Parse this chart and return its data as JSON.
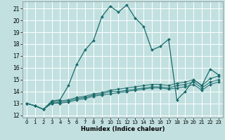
{
  "xlabel": "Humidex (Indice chaleur)",
  "bg_color": "#c2e0e0",
  "grid_color": "#ffffff",
  "line_color": "#1a6b6b",
  "xlim": [
    -0.5,
    23.5
  ],
  "ylim": [
    11.8,
    21.6
  ],
  "yticks": [
    12,
    13,
    14,
    15,
    16,
    17,
    18,
    19,
    20,
    21
  ],
  "xticks": [
    0,
    1,
    2,
    3,
    4,
    5,
    6,
    7,
    8,
    9,
    10,
    11,
    12,
    13,
    14,
    15,
    16,
    17,
    18,
    19,
    20,
    21,
    22,
    23
  ],
  "main_line": {
    "x": [
      0,
      1,
      2,
      3,
      4,
      5,
      6,
      7,
      8,
      9,
      10,
      11,
      12,
      13,
      14,
      15,
      16,
      17,
      18,
      19,
      20,
      21,
      22,
      23
    ],
    "y": [
      13.0,
      12.8,
      12.5,
      13.2,
      13.3,
      14.5,
      16.3,
      17.5,
      18.3,
      20.3,
      21.2,
      20.7,
      21.3,
      20.2,
      19.5,
      17.5,
      17.8,
      18.4,
      13.3,
      14.0,
      15.0,
      14.5,
      15.9,
      15.4
    ]
  },
  "line2": {
    "x": [
      0,
      1,
      2,
      3,
      4,
      5,
      6,
      7,
      8,
      9,
      10,
      11,
      12,
      13,
      14,
      15,
      16,
      17,
      18,
      19,
      20,
      21,
      22,
      23
    ],
    "y": [
      13.0,
      12.8,
      12.5,
      13.1,
      13.2,
      13.3,
      13.5,
      13.6,
      13.8,
      13.9,
      14.1,
      14.2,
      14.3,
      14.4,
      14.5,
      14.6,
      14.6,
      14.5,
      14.7,
      14.8,
      15.0,
      14.5,
      15.1,
      15.3
    ]
  },
  "line3": {
    "x": [
      0,
      1,
      2,
      3,
      4,
      5,
      6,
      7,
      8,
      9,
      10,
      11,
      12,
      13,
      14,
      15,
      16,
      17,
      18,
      19,
      20,
      21,
      22,
      23
    ],
    "y": [
      13.0,
      12.8,
      12.5,
      13.0,
      13.1,
      13.2,
      13.4,
      13.5,
      13.7,
      13.8,
      14.0,
      14.0,
      14.1,
      14.2,
      14.3,
      14.4,
      14.4,
      14.3,
      14.5,
      14.6,
      14.8,
      14.3,
      14.8,
      15.0
    ]
  },
  "line4": {
    "x": [
      0,
      1,
      2,
      3,
      4,
      5,
      6,
      7,
      8,
      9,
      10,
      11,
      12,
      13,
      14,
      15,
      16,
      17,
      18,
      19,
      20,
      21,
      22,
      23
    ],
    "y": [
      13.0,
      12.8,
      12.5,
      13.0,
      13.0,
      13.1,
      13.3,
      13.4,
      13.6,
      13.7,
      13.8,
      13.9,
      14.0,
      14.1,
      14.2,
      14.3,
      14.3,
      14.2,
      14.3,
      14.4,
      14.6,
      14.1,
      14.6,
      14.8
    ]
  }
}
